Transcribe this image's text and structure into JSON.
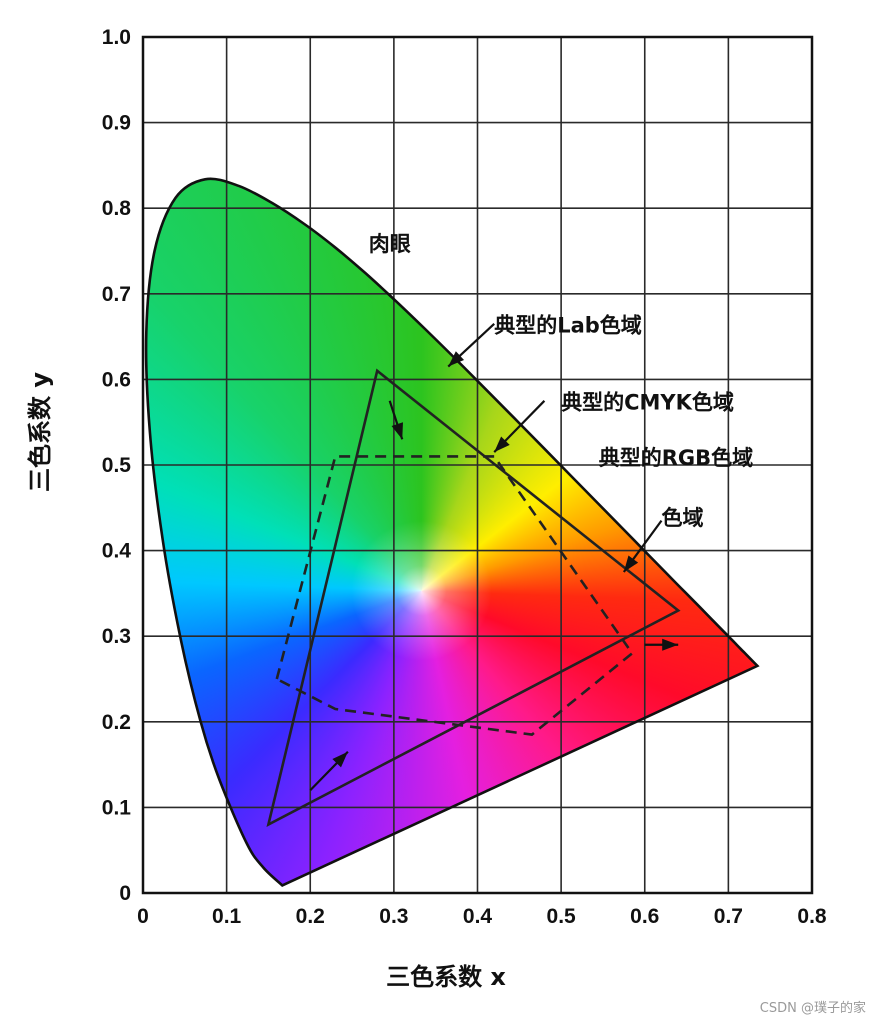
{
  "chart_data": {
    "type": "scatter",
    "xlabel": "三色系数 x",
    "ylabel": "三色系数 y",
    "xlim": [
      0,
      0.8
    ],
    "ylim": [
      0,
      1.0
    ],
    "x_ticks": [
      "0",
      "0.1",
      "0.2",
      "0.3",
      "0.4",
      "0.5",
      "0.6",
      "0.7",
      "0.8"
    ],
    "y_ticks": [
      "0",
      "0.1",
      "0.2",
      "0.3",
      "0.4",
      "0.5",
      "0.6",
      "0.7",
      "0.8",
      "0.9",
      "1.0"
    ],
    "grid": true,
    "white_point": [
      0.333,
      0.353
    ],
    "series": [
      {
        "name": "肉眼",
        "style": "filled spectral locus",
        "points": [
          [
            0.1666,
            0.0089
          ],
          [
            0.144,
            0.0297
          ],
          [
            0.1241,
            0.0578
          ],
          [
            0.0913,
            0.1327
          ],
          [
            0.0687,
            0.2007
          ],
          [
            0.0454,
            0.295
          ],
          [
            0.0235,
            0.4127
          ],
          [
            0.0082,
            0.5384
          ],
          [
            0.0039,
            0.6548
          ],
          [
            0.0139,
            0.7502
          ],
          [
            0.0389,
            0.812
          ],
          [
            0.0743,
            0.8338
          ],
          [
            0.1142,
            0.8262
          ],
          [
            0.1547,
            0.8059
          ],
          [
            0.1929,
            0.7816
          ],
          [
            0.2296,
            0.7543
          ],
          [
            0.2658,
            0.7243
          ],
          [
            0.3016,
            0.6923
          ],
          [
            0.3373,
            0.6589
          ],
          [
            0.3731,
            0.6245
          ],
          [
            0.4087,
            0.5896
          ],
          [
            0.4441,
            0.5547
          ],
          [
            0.4788,
            0.5202
          ],
          [
            0.5125,
            0.4866
          ],
          [
            0.5448,
            0.4544
          ],
          [
            0.5752,
            0.4242
          ],
          [
            0.6029,
            0.3965
          ],
          [
            0.627,
            0.3725
          ],
          [
            0.6482,
            0.3514
          ],
          [
            0.6658,
            0.334
          ],
          [
            0.6801,
            0.3197
          ],
          [
            0.6915,
            0.3083
          ],
          [
            0.7006,
            0.2993
          ],
          [
            0.7079,
            0.292
          ],
          [
            0.714,
            0.2859
          ],
          [
            0.719,
            0.2809
          ],
          [
            0.723,
            0.277
          ],
          [
            0.726,
            0.274
          ],
          [
            0.7283,
            0.2717
          ],
          [
            0.7347,
            0.2653
          ]
        ]
      },
      {
        "name": "典型的CMYK色域",
        "style": "dashed",
        "points": [
          [
            0.16,
            0.25
          ],
          [
            0.23,
            0.51
          ],
          [
            0.42,
            0.51
          ],
          [
            0.585,
            0.28
          ],
          [
            0.465,
            0.185
          ],
          [
            0.23,
            0.215
          ]
        ]
      },
      {
        "name": "典型的RGB色域",
        "style": "solid",
        "points": [
          [
            0.28,
            0.61
          ],
          [
            0.64,
            0.33
          ],
          [
            0.15,
            0.08
          ]
        ]
      }
    ],
    "annotations": [
      {
        "text": "肉眼",
        "x": 0.27,
        "y": 0.75
      },
      {
        "text": "典型的Lab色域",
        "x": 0.42,
        "y": 0.655
      },
      {
        "text": "典型的CMYK色域",
        "x": 0.5,
        "y": 0.565
      },
      {
        "text": "典型的RGB色域",
        "x": 0.545,
        "y": 0.5
      },
      {
        "text": "色域",
        "x": 0.62,
        "y": 0.43
      }
    ],
    "arrows": [
      {
        "points": [
          [
            0.42,
            0.665
          ],
          [
            0.365,
            0.615
          ]
        ],
        "head": true
      },
      {
        "points": [
          [
            0.48,
            0.575
          ],
          [
            0.42,
            0.515
          ]
        ],
        "head": true
      },
      {
        "points": [
          [
            0.62,
            0.435
          ],
          [
            0.575,
            0.375
          ]
        ],
        "head": true
      },
      {
        "points": [
          [
            0.295,
            0.575
          ],
          [
            0.31,
            0.53
          ]
        ],
        "head": true
      },
      {
        "points": [
          [
            0.6,
            0.29
          ],
          [
            0.64,
            0.29
          ]
        ],
        "head": true
      },
      {
        "points": [
          [
            0.2,
            0.12
          ],
          [
            0.245,
            0.165
          ]
        ],
        "head": true
      }
    ]
  },
  "watermark": "CSDN @璞子的家"
}
